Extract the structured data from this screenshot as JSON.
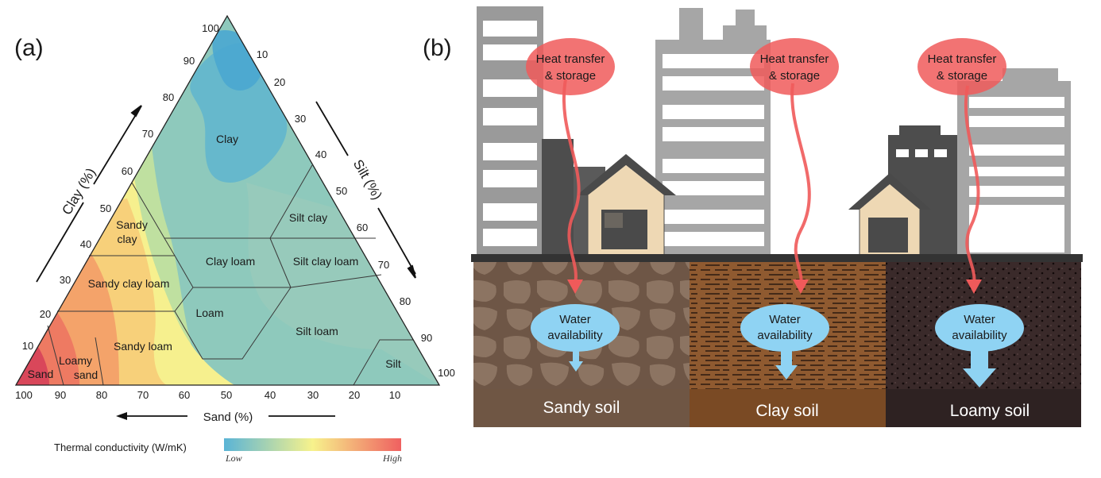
{
  "panel_a": {
    "label": "(a)",
    "axis_clay": "Clay (%)",
    "axis_silt": "Silt (%)",
    "axis_sand": "Sand (%)",
    "clay_ticks": [
      "10",
      "20",
      "30",
      "40",
      "50",
      "60",
      "70",
      "80",
      "90",
      "100"
    ],
    "silt_ticks": [
      "10",
      "20",
      "30",
      "40",
      "50",
      "60",
      "70",
      "80",
      "90",
      "100"
    ],
    "sand_ticks": [
      "100",
      "90",
      "80",
      "70",
      "60",
      "50",
      "40",
      "30",
      "20",
      "10"
    ],
    "classes": {
      "clay": "Clay",
      "sandy_clay_1": "Sandy",
      "sandy_clay_2": "clay",
      "silt_clay": "Silt clay",
      "clay_loam": "Clay loam",
      "silt_clay_loam": "Silt clay loam",
      "sandy_clay_loam": "Sandy clay loam",
      "loam": "Loam",
      "silt_loam": "Silt loam",
      "sandy_loam": "Sandy loam",
      "loamy_sand_1": "Loamy",
      "loamy_sand_2": "sand",
      "sand": "Sand",
      "silt": "Silt"
    },
    "legend": {
      "title": "Thermal conductivity (W/mK)",
      "low": "Low",
      "high": "High",
      "color_low": "#5ab4d6",
      "color_mid": "#f7f28c",
      "color_high": "#ef6060"
    }
  },
  "panel_b": {
    "label": "(b)",
    "heat_1": "Heat transfer",
    "heat_2": "& storage",
    "water_1": "Water",
    "water_2": "availability",
    "soils": [
      "Sandy soil",
      "Clay soil",
      "Loamy soil"
    ],
    "colors": {
      "heat": "#f05a5a",
      "water": "#8fd3f3",
      "sandy": "#8a6a55",
      "clay": "#8f5a30",
      "loamy": "#3a2a2a"
    }
  }
}
